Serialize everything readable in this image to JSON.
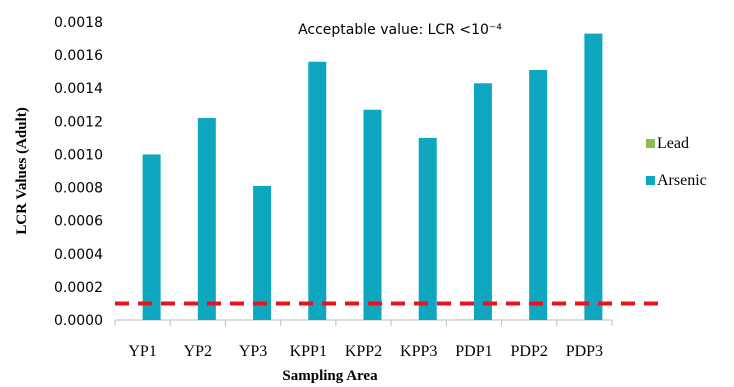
{
  "chart_data": {
    "type": "bar",
    "categories": [
      "YP1",
      "YP2",
      "YP3",
      "KPP1",
      "KPP2",
      "KPP3",
      "PDP1",
      "PDP2",
      "PDP3"
    ],
    "series": [
      {
        "name": "Lead",
        "color": "#8fbc4a",
        "values": [
          0.0,
          0.0,
          0.0,
          0.0,
          0.0,
          0.0,
          3e-06,
          0.0,
          0.0
        ]
      },
      {
        "name": "Arsenic",
        "color": "#0fa7c0",
        "values": [
          0.001,
          0.00122,
          0.00081,
          0.00156,
          0.00127,
          0.0011,
          0.00143,
          0.00151,
          0.00173
        ]
      }
    ],
    "xlabel": "Sampling Area",
    "ylabel": "LCR Values (Adult)",
    "ylim": [
      0,
      0.0018
    ],
    "yticks": [
      "0.0000",
      "0.0002",
      "0.0004",
      "0.0006",
      "0.0008",
      "0.0010",
      "0.0012",
      "0.0014",
      "0.0016",
      "0.0018"
    ],
    "annotation": "Acceptable value: LCR <10⁻⁴",
    "threshold": {
      "value": 0.0001,
      "color": "#e8141c",
      "style": "dashed"
    },
    "legend": "right",
    "grid": false
  }
}
